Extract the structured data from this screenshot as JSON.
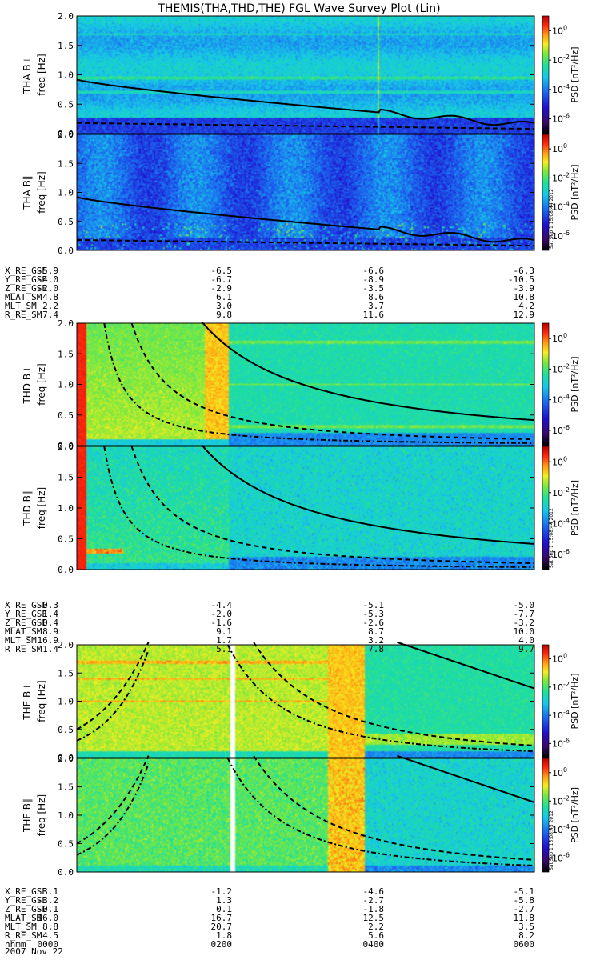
{
  "chart_data": {
    "type": "heatmap",
    "title": "THEMIS(THA,THD,THE) FGL Wave Survey Plot (Lin)",
    "ylabel_unit": "freq [Hz]",
    "ylim": [
      0,
      2.0
    ],
    "yticks": [
      "0.0",
      "0.5",
      "1.0",
      "1.5",
      "2.0"
    ],
    "colorbar": {
      "label": "PSD [nT²/Hz]",
      "ticks": [
        {
          "base": "10",
          "exp": "0",
          "log": 0
        },
        {
          "base": "10",
          "exp": "-2",
          "log": -2
        },
        {
          "base": "10",
          "exp": "-4",
          "log": -4
        },
        {
          "base": "10",
          "exp": "-6",
          "log": -6
        }
      ],
      "log_range": [
        -7,
        1
      ]
    },
    "panels": [
      {
        "label": "THA B⊥",
        "probe": "THA",
        "stamp": "",
        "style": "tha_perp"
      },
      {
        "label": "THA B∥",
        "probe": "THA",
        "stamp": "Sat Sep  1 15:08:44 2012",
        "style": "tha_par"
      },
      {
        "label": "THD B⊥",
        "probe": "THD",
        "stamp": "",
        "style": "thd_perp"
      },
      {
        "label": "THD B∥",
        "probe": "THD",
        "stamp": "Sat Sep  1 15:08:44 2012",
        "style": "thd_par"
      },
      {
        "label": "THE B⊥",
        "probe": "THE",
        "stamp": "",
        "style": "the_perp"
      },
      {
        "label": "THE B∥",
        "probe": "THE",
        "stamp": "Sat Sep  1 15:08:45 2012",
        "style": "the_par"
      }
    ],
    "ephemeris": [
      {
        "probe": "THA",
        "rows": [
          {
            "label": "X_RE_GSE",
            "values": [
              "-5.9",
              "-6.5",
              "-6.6",
              "-6.3"
            ]
          },
          {
            "label": "Y_RE_GSE",
            "values": [
              "-4.0",
              "-6.7",
              "-8.9",
              "-10.5"
            ]
          },
          {
            "label": "Z_RE_GSE",
            "values": [
              "-2.0",
              "-2.9",
              "-3.5",
              "-3.9"
            ]
          },
          {
            "label": "MLAT_SM",
            "values": [
              "4.8",
              "6.1",
              "8.6",
              "10.8"
            ]
          },
          {
            "label": "MLT_SM",
            "values": [
              "2.2",
              "3.0",
              "3.7",
              "4.2"
            ]
          },
          {
            "label": "R_RE_SM",
            "values": [
              "7.4",
              "9.8",
              "11.6",
              "12.9"
            ]
          }
        ]
      },
      {
        "probe": "THD",
        "rows": [
          {
            "label": "X_RE_GSE",
            "values": [
              "0.3",
              "-4.4",
              "-5.1",
              "-5.0"
            ]
          },
          {
            "label": "Y_RE_GSE",
            "values": [
              "1.4",
              "-2.0",
              "-5.3",
              "-7.7"
            ]
          },
          {
            "label": "Z_RE_GSE",
            "values": [
              "0.4",
              "-1.6",
              "-2.6",
              "-3.2"
            ]
          },
          {
            "label": "MLAT_SM",
            "values": [
              "8.9",
              "9.1",
              "8.7",
              "10.0"
            ]
          },
          {
            "label": "MLT_SM",
            "values": [
              "16.9",
              "1.7",
              "3.2",
              "4.0"
            ]
          },
          {
            "label": "R_RE_SM",
            "values": [
              "1.4",
              "5.1",
              "7.8",
              "9.7"
            ]
          }
        ]
      },
      {
        "probe": "THE",
        "rows": [
          {
            "label": "X_RE_GSE",
            "values": [
              "3.1",
              "-1.2",
              "-4.6",
              "-5.1"
            ]
          },
          {
            "label": "Y_RE_GSE",
            "values": [
              "-3.2",
              "1.3",
              "-2.7",
              "-5.8"
            ]
          },
          {
            "label": "Z_RE_GSE",
            "values": [
              "-0.1",
              "0.1",
              "-1.8",
              "-2.7"
            ]
          },
          {
            "label": "MLAT_SM",
            "values": [
              "-16.0",
              "16.7",
              "12.5",
              "11.8"
            ]
          },
          {
            "label": "MLT_SM",
            "values": [
              "8.8",
              "20.7",
              "2.2",
              "3.5"
            ]
          },
          {
            "label": "R_RE_SM",
            "values": [
              "4.5",
              "1.8",
              "5.6",
              "8.2"
            ]
          },
          {
            "label": "hhmm",
            "values": [
              "0000",
              "0200",
              "0400",
              "0600"
            ]
          }
        ]
      }
    ],
    "date": "2007 Nov 22",
    "xlim_hours": [
      0,
      6
    ]
  }
}
